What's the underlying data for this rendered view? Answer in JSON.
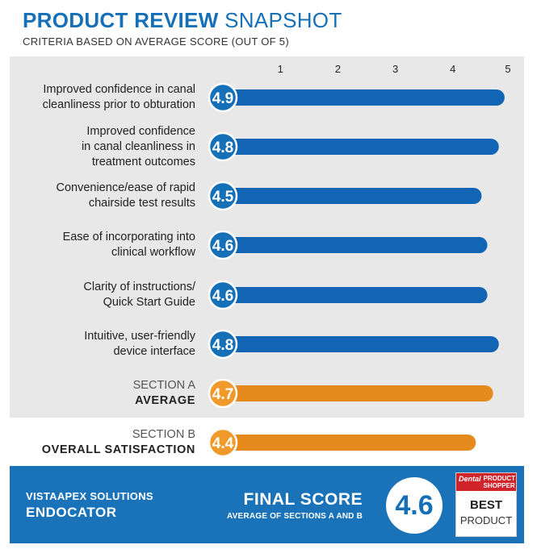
{
  "header": {
    "title_bold": "PRODUCT REVIEW",
    "title_light": "SNAPSHOT",
    "subtitle": "CRITERIA BASED ON AVERAGE SCORE (OUT OF 5)"
  },
  "colors": {
    "bar_blue": "#1265b5",
    "bar_orange": "#e68a1e",
    "circle_blue": "#1570b8",
    "circle_orange": "#ef9a2a",
    "panel_gray": "#e8e8e8",
    "footer_blue": "#1a72b9"
  },
  "chart_data": {
    "type": "bar",
    "orientation": "horizontal",
    "xlim": [
      0,
      5
    ],
    "ticks": [
      "1",
      "2",
      "3",
      "4",
      "5"
    ],
    "tick_values": [
      1,
      2,
      3,
      4,
      5
    ],
    "bars": [
      {
        "label_lines": [
          "Improved confidence in canal",
          "cleanliness prior to obturation"
        ],
        "value": 4.9,
        "display": "4.9",
        "kind": "criterion"
      },
      {
        "label_lines": [
          "Improved confidence",
          "in canal cleanliness in",
          "treatment outcomes"
        ],
        "value": 4.8,
        "display": "4.8",
        "kind": "criterion"
      },
      {
        "label_lines": [
          "Convenience/ease of rapid",
          "chairside test results"
        ],
        "value": 4.5,
        "display": "4.5",
        "kind": "criterion"
      },
      {
        "label_lines": [
          "Ease of incorporating into",
          "clinical workflow"
        ],
        "value": 4.6,
        "display": "4.6",
        "kind": "criterion"
      },
      {
        "label_lines": [
          "Clarity of instructions/",
          "Quick Start Guide"
        ],
        "value": 4.6,
        "display": "4.6",
        "kind": "criterion"
      },
      {
        "label_lines": [
          "Intuitive, user-friendly",
          "device interface"
        ],
        "value": 4.8,
        "display": "4.8",
        "kind": "criterion"
      },
      {
        "label_lines": [
          "SECTION A",
          "AVERAGE"
        ],
        "value": 4.7,
        "display": "4.7",
        "kind": "average"
      },
      {
        "label_lines": [
          "SECTION B",
          "OVERALL SATISFACTION"
        ],
        "value": 4.4,
        "display": "4.4",
        "kind": "average"
      }
    ]
  },
  "footer": {
    "company_line1": "VISTAAPEX SOLUTIONS",
    "company_line2": "ENDOCATOR",
    "final_label": "FINAL SCORE",
    "final_sub": "AVERAGE OF SECTIONS A AND B",
    "final_value": "4.6",
    "badge": {
      "brand_word": "Dental",
      "brand_line1": "PRODUCT",
      "brand_line2": "SHOPPER",
      "best": "BEST",
      "product": "PRODUCT"
    }
  }
}
